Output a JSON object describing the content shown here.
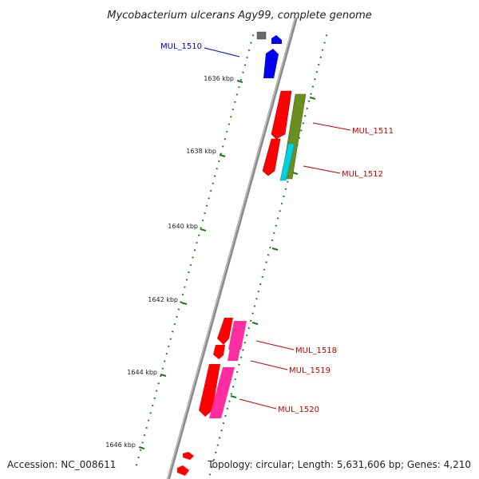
{
  "title": "Mycobacterium ulcerans Agy99, complete genome",
  "footer": {
    "accession": "Accession: NC_008611",
    "topology": "Topology: circular; Length: 5,631,606 bp; Genes: 4,210"
  },
  "colors": {
    "backbone": "#888888",
    "tick": "#1a7a1a",
    "gene_red": "#ff0000",
    "gene_pink": "#ff2ea0",
    "gene_olive": "#6b8e23",
    "gene_cyan": "#00d0e0",
    "gene_blue": "#0000ee",
    "gene_gray": "#707070",
    "label_blue": "#0000cc",
    "label_red": "#cc0000"
  },
  "ticks": [
    "1636 kbp",
    "1638 kbp",
    "1640 kbp",
    "1642 kbp",
    "1644 kbp",
    "1646 kbp"
  ],
  "genes": [
    "MUL_1510",
    "MUL_1511",
    "MUL_1512",
    "MUL_1518",
    "MUL_1519",
    "MUL_1520"
  ]
}
